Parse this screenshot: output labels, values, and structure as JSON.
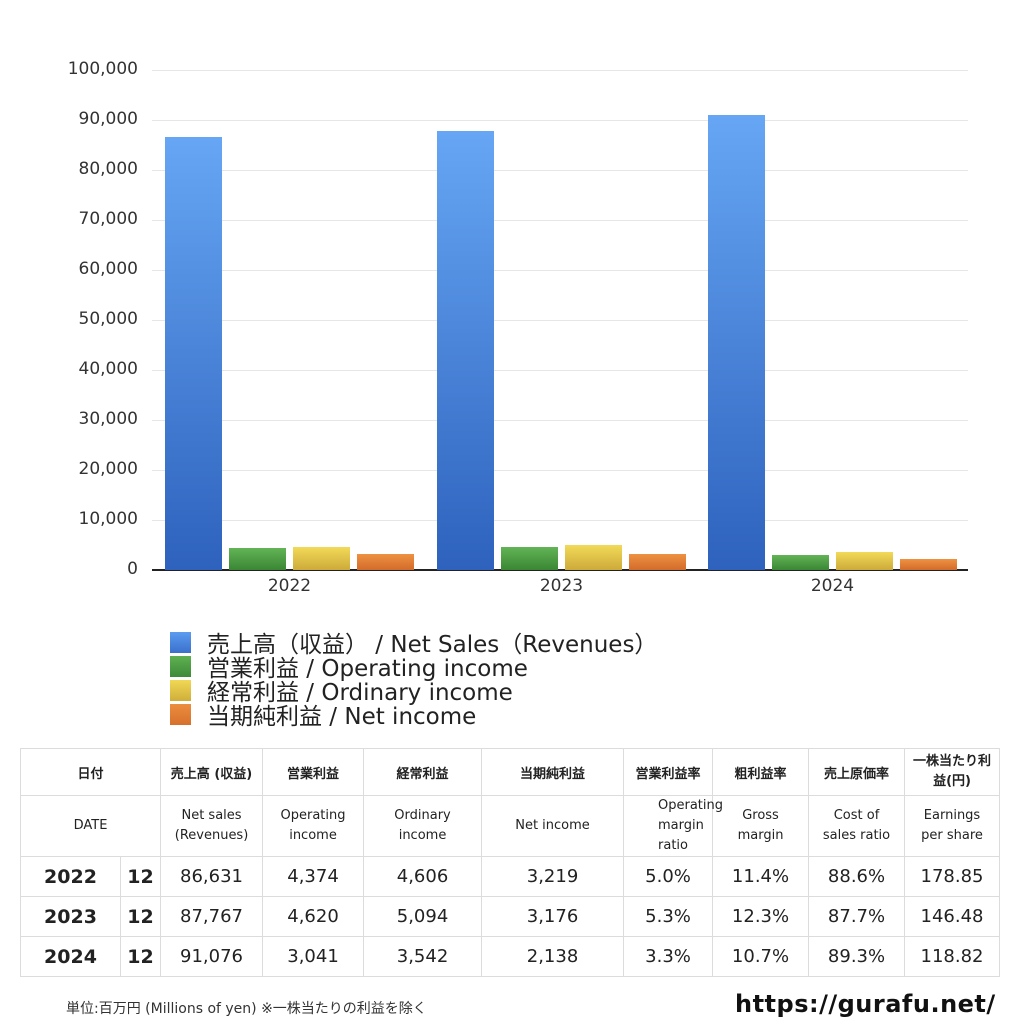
{
  "chart_data": {
    "type": "bar",
    "title": "",
    "xlabel": "",
    "ylabel": "",
    "ylim": [
      0,
      100000
    ],
    "yticks": [
      "0",
      "10,000",
      "20,000",
      "30,000",
      "40,000",
      "50,000",
      "60,000",
      "70,000",
      "80,000",
      "90,000",
      "100,000"
    ],
    "categories": [
      "2022",
      "2023",
      "2024"
    ],
    "grid": true,
    "legend_position": "bottom",
    "series": [
      {
        "name": "売上高（収益） / Net Sales（Revenues）",
        "color": "#4a86e0",
        "values": [
          86631,
          87767,
          91076
        ]
      },
      {
        "name": "営業利益 / Operating income",
        "color": "#4e9e45",
        "values": [
          4374,
          4620,
          3041
        ]
      },
      {
        "name": "経常利益 / Ordinary income",
        "color": "#e2c544",
        "values": [
          4606,
          5094,
          3542
        ]
      },
      {
        "name": "当期純利益 / Net income",
        "color": "#e07f35",
        "values": [
          3219,
          3176,
          2138
        ]
      }
    ]
  },
  "legend": [
    {
      "label": "売上高（収益） / Net Sales（Revenues）"
    },
    {
      "label": "営業利益 / Operating income"
    },
    {
      "label": "経常利益 / Ordinary income"
    },
    {
      "label": "当期純利益 / Net income"
    }
  ],
  "table": {
    "header_jp": [
      "日付",
      "売上高 (収益)",
      "営業利益",
      "経常利益",
      "当期純利益",
      "営業利益率",
      "粗利益率",
      "売上原価率",
      "一株当たり利益(円)"
    ],
    "header_en": [
      "DATE",
      "Net sales (Revenues)",
      "Operating income",
      "Ordinary income",
      "Net income",
      "Operating margin ratio",
      "Gross margin",
      "Cost of sales ratio",
      "Earnings per share"
    ],
    "rows": [
      {
        "year": "2022",
        "month": "12",
        "cells": [
          "86,631",
          "4,374",
          "4,606",
          "3,219",
          "5.0%",
          "11.4%",
          "88.6%",
          "178.85"
        ]
      },
      {
        "year": "2023",
        "month": "12",
        "cells": [
          "87,767",
          "4,620",
          "5,094",
          "3,176",
          "5.3%",
          "12.3%",
          "87.7%",
          "146.48"
        ]
      },
      {
        "year": "2024",
        "month": "12",
        "cells": [
          "91,076",
          "3,041",
          "3,542",
          "2,138",
          "3.3%",
          "10.7%",
          "89.3%",
          "118.82"
        ]
      }
    ]
  },
  "footer": {
    "note": "単位:百万円 (Millions of yen) ※一株当たりの利益を除く",
    "site": "https://gurafu.net/"
  }
}
